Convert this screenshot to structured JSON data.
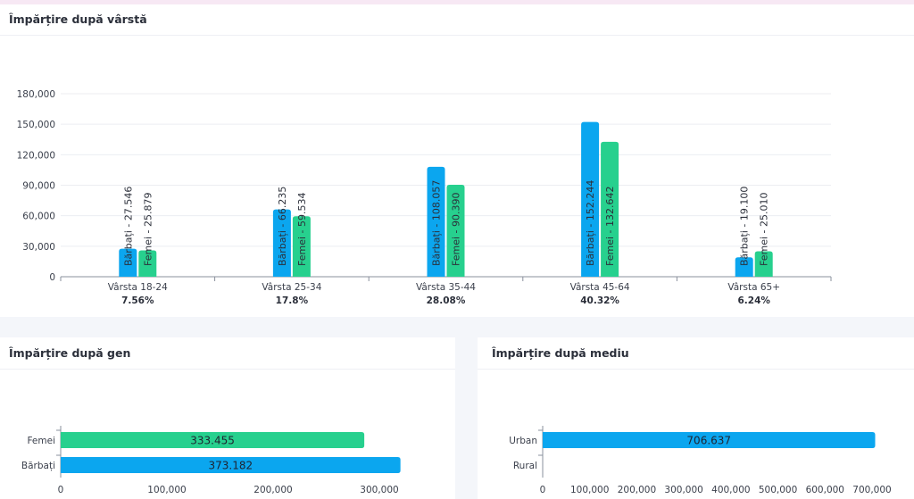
{
  "age_card": {
    "title": "Împărțire după vârstă"
  },
  "gender_card": {
    "title": "Împărțire după gen"
  },
  "environment_card": {
    "title": "Împărțire după mediu"
  },
  "chart_data": [
    {
      "type": "bar",
      "title": "Împărțire după vârstă",
      "categories": [
        "Vârsta 18-24",
        "Vârsta 25-34",
        "Vârsta 35-44",
        "Vârsta 45-64",
        "Vârsta 65+"
      ],
      "category_percentages": [
        "7.56%",
        "17.8%",
        "28.08%",
        "40.32%",
        "6.24%"
      ],
      "series": [
        {
          "values": [
            27546,
            66235,
            108057,
            152244,
            19100
          ],
          "data_labels": [
            "Bărbați - 27.546",
            "Bărbați - 66.235",
            "Bărbați - 108.057",
            "Bărbați - 152.244",
            "Bărbați - 19.100"
          ],
          "color": "#0ba6ef"
        },
        {
          "values": [
            25879,
            59534,
            90390,
            132642,
            25010
          ],
          "data_labels": [
            "Femei - 25.879",
            "Femei - 59.534",
            "Femei - 90.390",
            "Femei - 132.642",
            "Femei - 25.010"
          ],
          "color": "#27d08e"
        }
      ],
      "ylim": [
        0,
        180000
      ],
      "yticks": [
        "0",
        "30,000",
        "60,000",
        "90,000",
        "120,000",
        "150,000",
        "180,000"
      ],
      "grid": true
    },
    {
      "type": "bar",
      "orientation": "horizontal",
      "title": "Împărțire după gen",
      "categories": [
        "Femei",
        "Bărbați"
      ],
      "values": [
        333455,
        373182
      ],
      "data_labels": [
        "333.455",
        "373.182"
      ],
      "colors": [
        "#27d08e",
        "#0ba6ef"
      ],
      "xlim": [
        0,
        350000
      ],
      "xticks": [
        "0",
        "100,000",
        "200,000",
        "300,000"
      ]
    },
    {
      "type": "bar",
      "orientation": "horizontal",
      "title": "Împărțire după mediu",
      "categories": [
        "Urban",
        "Rural"
      ],
      "values": [
        706637,
        0
      ],
      "data_labels": [
        "706.637",
        ""
      ],
      "colors": [
        "#0ba6ef",
        "#0ba6ef"
      ],
      "xlim": [
        0,
        700000
      ],
      "xticks": [
        "0",
        "100,000",
        "200,000",
        "300,000",
        "400,000",
        "500,000",
        "600,000",
        "700,000"
      ]
    }
  ]
}
